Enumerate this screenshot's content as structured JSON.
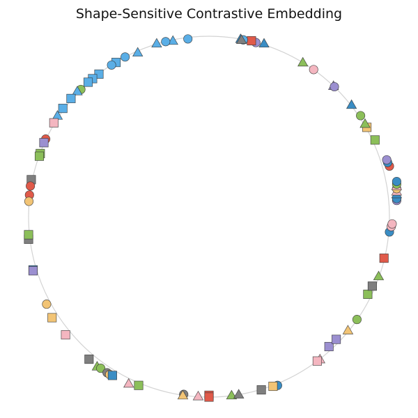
{
  "chart_data": {
    "type": "scatter",
    "title": "Shape-Sensitive Contrastive Embedding",
    "xlabel": "",
    "ylabel": "",
    "grid": false,
    "axes_visible": false,
    "guide_circle": {
      "color": "#d3d3d3"
    },
    "shape_names": {
      "o": "circle",
      "s": "square",
      "^": "triangle"
    },
    "colors": {
      "blue": "#5aaee6",
      "steel": "#3a8dc4",
      "red": "#e05a4a",
      "purple": "#9b8fd0",
      "green": "#8cbf5a",
      "pink": "#f4b6c0",
      "orange": "#f2c475",
      "gray": "#7f7f7f"
    },
    "points": [
      {
        "x": -0.117,
        "y": 0.985,
        "shape": "o",
        "color": "blue"
      },
      {
        "x": -0.2,
        "y": 0.975,
        "shape": "^",
        "color": "blue"
      },
      {
        "x": -0.24,
        "y": 0.97,
        "shape": "o",
        "color": "blue"
      },
      {
        "x": -0.29,
        "y": 0.96,
        "shape": "^",
        "color": "blue"
      },
      {
        "x": -0.395,
        "y": 0.91,
        "shape": "^",
        "color": "blue"
      },
      {
        "x": -0.465,
        "y": 0.885,
        "shape": "o",
        "color": "blue"
      },
      {
        "x": -0.515,
        "y": 0.855,
        "shape": "s",
        "color": "blue"
      },
      {
        "x": -0.54,
        "y": 0.84,
        "shape": "o",
        "color": "blue"
      },
      {
        "x": -0.61,
        "y": 0.79,
        "shape": "s",
        "color": "blue"
      },
      {
        "x": -0.645,
        "y": 0.765,
        "shape": "s",
        "color": "blue"
      },
      {
        "x": -0.67,
        "y": 0.745,
        "shape": "s",
        "color": "blue"
      },
      {
        "x": -0.71,
        "y": 0.705,
        "shape": "o",
        "color": "green"
      },
      {
        "x": -0.73,
        "y": 0.695,
        "shape": "^",
        "color": "blue"
      },
      {
        "x": -0.765,
        "y": 0.655,
        "shape": "s",
        "color": "blue"
      },
      {
        "x": -0.81,
        "y": 0.6,
        "shape": "s",
        "color": "blue"
      },
      {
        "x": -0.84,
        "y": 0.56,
        "shape": "^",
        "color": "blue"
      },
      {
        "x": -0.86,
        "y": 0.52,
        "shape": "s",
        "color": "pink"
      },
      {
        "x": -0.905,
        "y": 0.43,
        "shape": "o",
        "color": "red"
      },
      {
        "x": -0.915,
        "y": 0.41,
        "shape": "s",
        "color": "purple"
      },
      {
        "x": -0.935,
        "y": 0.35,
        "shape": "s",
        "color": "green"
      },
      {
        "x": -0.94,
        "y": 0.335,
        "shape": "s",
        "color": "green"
      },
      {
        "x": -0.985,
        "y": 0.205,
        "shape": "s",
        "color": "gray"
      },
      {
        "x": -0.99,
        "y": 0.17,
        "shape": "o",
        "color": "red"
      },
      {
        "x": -0.995,
        "y": 0.12,
        "shape": "o",
        "color": "red"
      },
      {
        "x": -0.998,
        "y": 0.085,
        "shape": "o",
        "color": "orange"
      },
      {
        "x": -1.0,
        "y": -0.125,
        "shape": "s",
        "color": "gray"
      },
      {
        "x": -1.0,
        "y": -0.1,
        "shape": "s",
        "color": "green"
      },
      {
        "x": -0.975,
        "y": -0.295,
        "shape": "s",
        "color": "steel"
      },
      {
        "x": -0.975,
        "y": -0.3,
        "shape": "s",
        "color": "purple"
      },
      {
        "x": -0.9,
        "y": -0.485,
        "shape": "o",
        "color": "orange"
      },
      {
        "x": -0.87,
        "y": -0.56,
        "shape": "s",
        "color": "orange"
      },
      {
        "x": -0.795,
        "y": -0.655,
        "shape": "s",
        "color": "pink"
      },
      {
        "x": -0.665,
        "y": -0.79,
        "shape": "s",
        "color": "gray"
      },
      {
        "x": -0.62,
        "y": -0.83,
        "shape": "^",
        "color": "green"
      },
      {
        "x": -0.6,
        "y": -0.84,
        "shape": "o",
        "color": "green"
      },
      {
        "x": -0.565,
        "y": -0.865,
        "shape": "o",
        "color": "gray"
      },
      {
        "x": -0.55,
        "y": -0.875,
        "shape": "o",
        "color": "orange"
      },
      {
        "x": -0.535,
        "y": -0.88,
        "shape": "s",
        "color": "steel"
      },
      {
        "x": -0.445,
        "y": -0.925,
        "shape": "^",
        "color": "pink"
      },
      {
        "x": -0.39,
        "y": -0.935,
        "shape": "s",
        "color": "green"
      },
      {
        "x": -0.14,
        "y": -0.985,
        "shape": "o",
        "color": "gray"
      },
      {
        "x": -0.145,
        "y": -0.99,
        "shape": "^",
        "color": "orange"
      },
      {
        "x": -0.06,
        "y": -0.995,
        "shape": "^",
        "color": "pink"
      },
      {
        "x": 0.0,
        "y": -0.99,
        "shape": "s",
        "color": "red"
      },
      {
        "x": 0.0,
        "y": -1.0,
        "shape": "s",
        "color": "red"
      },
      {
        "x": 0.125,
        "y": -0.99,
        "shape": "^",
        "color": "green"
      },
      {
        "x": 0.165,
        "y": -0.985,
        "shape": "^",
        "color": "gray"
      },
      {
        "x": 0.29,
        "y": -0.96,
        "shape": "s",
        "color": "gray"
      },
      {
        "x": 0.38,
        "y": -0.935,
        "shape": "o",
        "color": "steel"
      },
      {
        "x": 0.355,
        "y": -0.94,
        "shape": "s",
        "color": "orange"
      },
      {
        "x": 0.615,
        "y": -0.79,
        "shape": "^",
        "color": "pink"
      },
      {
        "x": 0.6,
        "y": -0.8,
        "shape": "s",
        "color": "pink"
      },
      {
        "x": 0.665,
        "y": -0.72,
        "shape": "s",
        "color": "purple"
      },
      {
        "x": 0.705,
        "y": -0.68,
        "shape": "s",
        "color": "purple"
      },
      {
        "x": 0.77,
        "y": -0.63,
        "shape": "^",
        "color": "orange"
      },
      {
        "x": 0.82,
        "y": -0.57,
        "shape": "o",
        "color": "green"
      },
      {
        "x": 0.88,
        "y": -0.43,
        "shape": "s",
        "color": "green"
      },
      {
        "x": 0.905,
        "y": -0.385,
        "shape": "s",
        "color": "gray"
      },
      {
        "x": 0.94,
        "y": -0.33,
        "shape": "^",
        "color": "green"
      },
      {
        "x": 0.97,
        "y": -0.23,
        "shape": "s",
        "color": "red"
      },
      {
        "x": 1.0,
        "y": -0.085,
        "shape": "o",
        "color": "steel"
      },
      {
        "x": 1.01,
        "y": -0.055,
        "shape": "o",
        "color": "pink"
      },
      {
        "x": 1.015,
        "y": -0.04,
        "shape": "o",
        "color": "pink"
      },
      {
        "x": 1.04,
        "y": 0.09,
        "shape": "o",
        "color": "purple"
      },
      {
        "x": 1.04,
        "y": 0.1,
        "shape": "o",
        "color": "steel"
      },
      {
        "x": 1.04,
        "y": 0.125,
        "shape": "^",
        "color": "steel"
      },
      {
        "x": 1.04,
        "y": 0.14,
        "shape": "^",
        "color": "pink"
      },
      {
        "x": 1.04,
        "y": 0.155,
        "shape": "o",
        "color": "orange"
      },
      {
        "x": 1.04,
        "y": 0.17,
        "shape": "^",
        "color": "pink"
      },
      {
        "x": 1.04,
        "y": 0.18,
        "shape": "o",
        "color": "green"
      },
      {
        "x": 1.04,
        "y": 0.195,
        "shape": "o",
        "color": "steel"
      },
      {
        "x": 1.0,
        "y": 0.28,
        "shape": "o",
        "color": "red"
      },
      {
        "x": 0.99,
        "y": 0.3,
        "shape": "o",
        "color": "steel"
      },
      {
        "x": 0.985,
        "y": 0.315,
        "shape": "o",
        "color": "purple"
      },
      {
        "x": 0.92,
        "y": 0.425,
        "shape": "s",
        "color": "green"
      },
      {
        "x": 0.875,
        "y": 0.495,
        "shape": "s",
        "color": "orange"
      },
      {
        "x": 0.865,
        "y": 0.515,
        "shape": "^",
        "color": "green"
      },
      {
        "x": 0.84,
        "y": 0.56,
        "shape": "o",
        "color": "green"
      },
      {
        "x": 0.79,
        "y": 0.62,
        "shape": "^",
        "color": "steel"
      },
      {
        "x": 0.69,
        "y": 0.725,
        "shape": "^",
        "color": "purple"
      },
      {
        "x": 0.695,
        "y": 0.72,
        "shape": "o",
        "color": "purple"
      },
      {
        "x": 0.58,
        "y": 0.815,
        "shape": "o",
        "color": "pink"
      },
      {
        "x": 0.52,
        "y": 0.855,
        "shape": "^",
        "color": "green"
      },
      {
        "x": 0.305,
        "y": 0.96,
        "shape": "^",
        "color": "steel"
      },
      {
        "x": 0.26,
        "y": 0.965,
        "shape": "o",
        "color": "purple"
      },
      {
        "x": 0.235,
        "y": 0.975,
        "shape": "s",
        "color": "red"
      },
      {
        "x": 0.19,
        "y": 0.98,
        "shape": "o",
        "color": "blue"
      },
      {
        "x": 0.175,
        "y": 0.985,
        "shape": "^",
        "color": "steel"
      },
      {
        "x": 0.18,
        "y": 0.98,
        "shape": "^",
        "color": "gray"
      }
    ]
  }
}
